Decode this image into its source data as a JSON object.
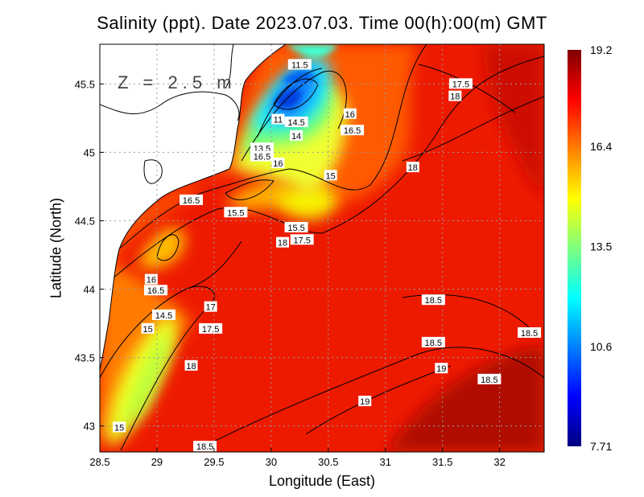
{
  "chart_data": {
    "type": "heatmap",
    "title": "Salinity (ppt). Date 2023.07.03. Time 00(h):00(m) GMT",
    "xlabel": "Longitude (East)",
    "ylabel": "Latitude (North)",
    "annotation": "Z = 2.5 m",
    "xlim": [
      28.5,
      32.39
    ],
    "ylim": [
      42.81,
      45.79
    ],
    "xticks": [
      "28.5",
      "29",
      "29.5",
      "30",
      "30.5",
      "31",
      "31.5",
      "32"
    ],
    "xtick_values": [
      28.5,
      29,
      29.5,
      30,
      30.5,
      31,
      31.5,
      32
    ],
    "yticks": [
      "43",
      "43.5",
      "44",
      "44.5",
      "45",
      "45.5"
    ],
    "ytick_values": [
      43,
      43.5,
      44,
      44.5,
      45,
      45.5
    ],
    "grid": true,
    "colorbar": {
      "min": 7.71,
      "max": 19.2,
      "tick_labels": [
        "19.2",
        "16.4",
        "13.5",
        "10.6",
        "7.71"
      ],
      "tick_values": [
        19.2,
        16.4,
        13.5,
        10.6,
        7.71
      ],
      "colormap": [
        "#000080",
        "#0000ff",
        "#0080ff",
        "#00ffff",
        "#80ff80",
        "#ffff00",
        "#ff8000",
        "#ff0000",
        "#800000"
      ]
    },
    "contour_labels": [
      {
        "text": "11.5",
        "lon": 30.25,
        "lat": 45.64
      },
      {
        "text": "17.5",
        "lon": 31.66,
        "lat": 45.5
      },
      {
        "text": "18",
        "lon": 31.61,
        "lat": 45.41
      },
      {
        "text": "16",
        "lon": 30.69,
        "lat": 45.28
      },
      {
        "text": "16.5",
        "lon": 30.71,
        "lat": 45.16
      },
      {
        "text": "11",
        "lon": 30.06,
        "lat": 45.24
      },
      {
        "text": "14.5",
        "lon": 30.22,
        "lat": 45.22
      },
      {
        "text": "14",
        "lon": 30.22,
        "lat": 45.12
      },
      {
        "text": "13.5",
        "lon": 29.92,
        "lat": 45.03
      },
      {
        "text": "16.5",
        "lon": 29.92,
        "lat": 44.97
      },
      {
        "text": "16",
        "lon": 30.06,
        "lat": 44.92
      },
      {
        "text": "15",
        "lon": 30.52,
        "lat": 44.83
      },
      {
        "text": "18",
        "lon": 31.24,
        "lat": 44.89
      },
      {
        "text": "16.5",
        "lon": 29.3,
        "lat": 44.65
      },
      {
        "text": "15.5",
        "lon": 29.69,
        "lat": 44.56
      },
      {
        "text": "15.5",
        "lon": 30.22,
        "lat": 44.45
      },
      {
        "text": "17.5",
        "lon": 30.27,
        "lat": 44.36
      },
      {
        "text": "18",
        "lon": 30.1,
        "lat": 44.34
      },
      {
        "text": "16",
        "lon": 28.95,
        "lat": 44.07
      },
      {
        "text": "16.5",
        "lon": 28.99,
        "lat": 43.99
      },
      {
        "text": "17",
        "lon": 29.47,
        "lat": 43.87
      },
      {
        "text": "14.5",
        "lon": 29.06,
        "lat": 43.81
      },
      {
        "text": "15",
        "lon": 28.92,
        "lat": 43.71
      },
      {
        "text": "17.5",
        "lon": 29.47,
        "lat": 43.71
      },
      {
        "text": "18",
        "lon": 29.3,
        "lat": 43.44
      },
      {
        "text": "18.5",
        "lon": 31.42,
        "lat": 43.92
      },
      {
        "text": "18.5",
        "lon": 32.26,
        "lat": 43.68
      },
      {
        "text": "18.5",
        "lon": 31.42,
        "lat": 43.61
      },
      {
        "text": "19",
        "lon": 31.49,
        "lat": 43.42
      },
      {
        "text": "18.5",
        "lon": 31.91,
        "lat": 43.34
      },
      {
        "text": "19",
        "lon": 30.82,
        "lat": 43.18
      },
      {
        "text": "15",
        "lon": 28.67,
        "lat": 42.99
      },
      {
        "text": "18.5",
        "lon": 29.42,
        "lat": 42.85
      }
    ]
  }
}
